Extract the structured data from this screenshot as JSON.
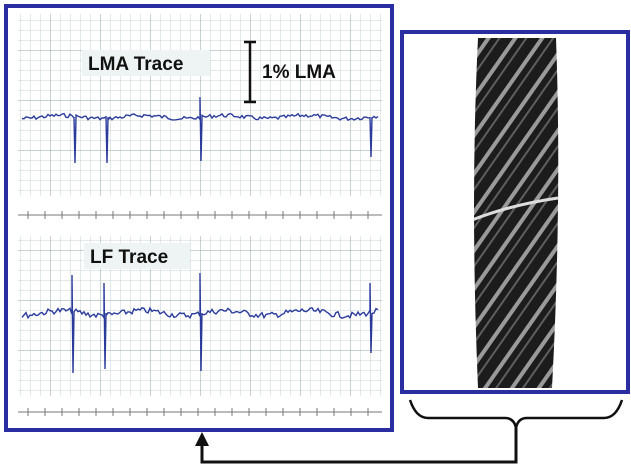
{
  "labels": {
    "lma_trace": "LMA Trace",
    "scale": "1% LMA",
    "lf_trace": "LF Trace"
  }
}
